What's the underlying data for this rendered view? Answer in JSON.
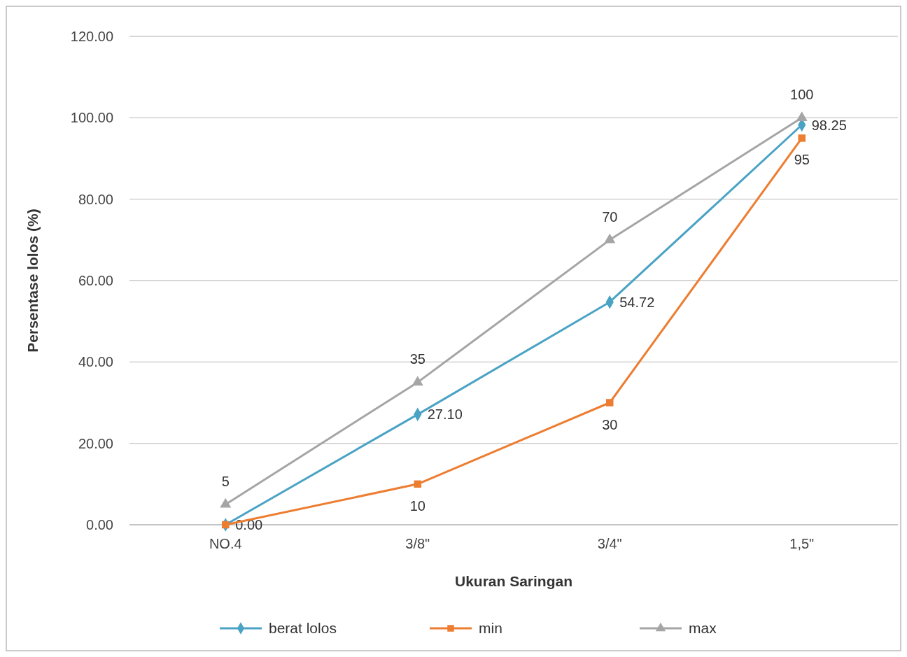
{
  "chart_data": {
    "type": "line",
    "xlabel": "Ukuran Saringan",
    "ylabel": "Persentase lolos (%)",
    "categories": [
      "NO.4",
      "3/8\"",
      "3/4\"",
      "1,5\""
    ],
    "series": [
      {
        "name": "berat lolos",
        "color": "#4aa3c4",
        "values": [
          0.0,
          27.1,
          54.72,
          98.25
        ],
        "marker": "diamond",
        "value_labels": [
          "0.00",
          "27.10",
          "54.72",
          "98.25"
        ]
      },
      {
        "name": "min",
        "color": "#ed7d31",
        "values": [
          0,
          10,
          30,
          95
        ],
        "marker": "square",
        "value_labels": [
          null,
          "10",
          "30",
          "95"
        ]
      },
      {
        "name": "max",
        "color": "#a5a5a5",
        "values": [
          5,
          35,
          70,
          100
        ],
        "marker": "triangle",
        "value_labels": [
          "5",
          "35",
          "70",
          "100"
        ]
      }
    ],
    "ylim": [
      0,
      120
    ],
    "yticks": [
      {
        "value": 0,
        "label": "0.00"
      },
      {
        "value": 20,
        "label": "20.00"
      },
      {
        "value": 40,
        "label": "40.00"
      },
      {
        "value": 60,
        "label": "60.00"
      },
      {
        "value": 80,
        "label": "80.00"
      },
      {
        "value": 100,
        "label": "100.00"
      },
      {
        "value": 120,
        "label": "120.00"
      }
    ],
    "grid": "y",
    "legend": "bottom"
  }
}
